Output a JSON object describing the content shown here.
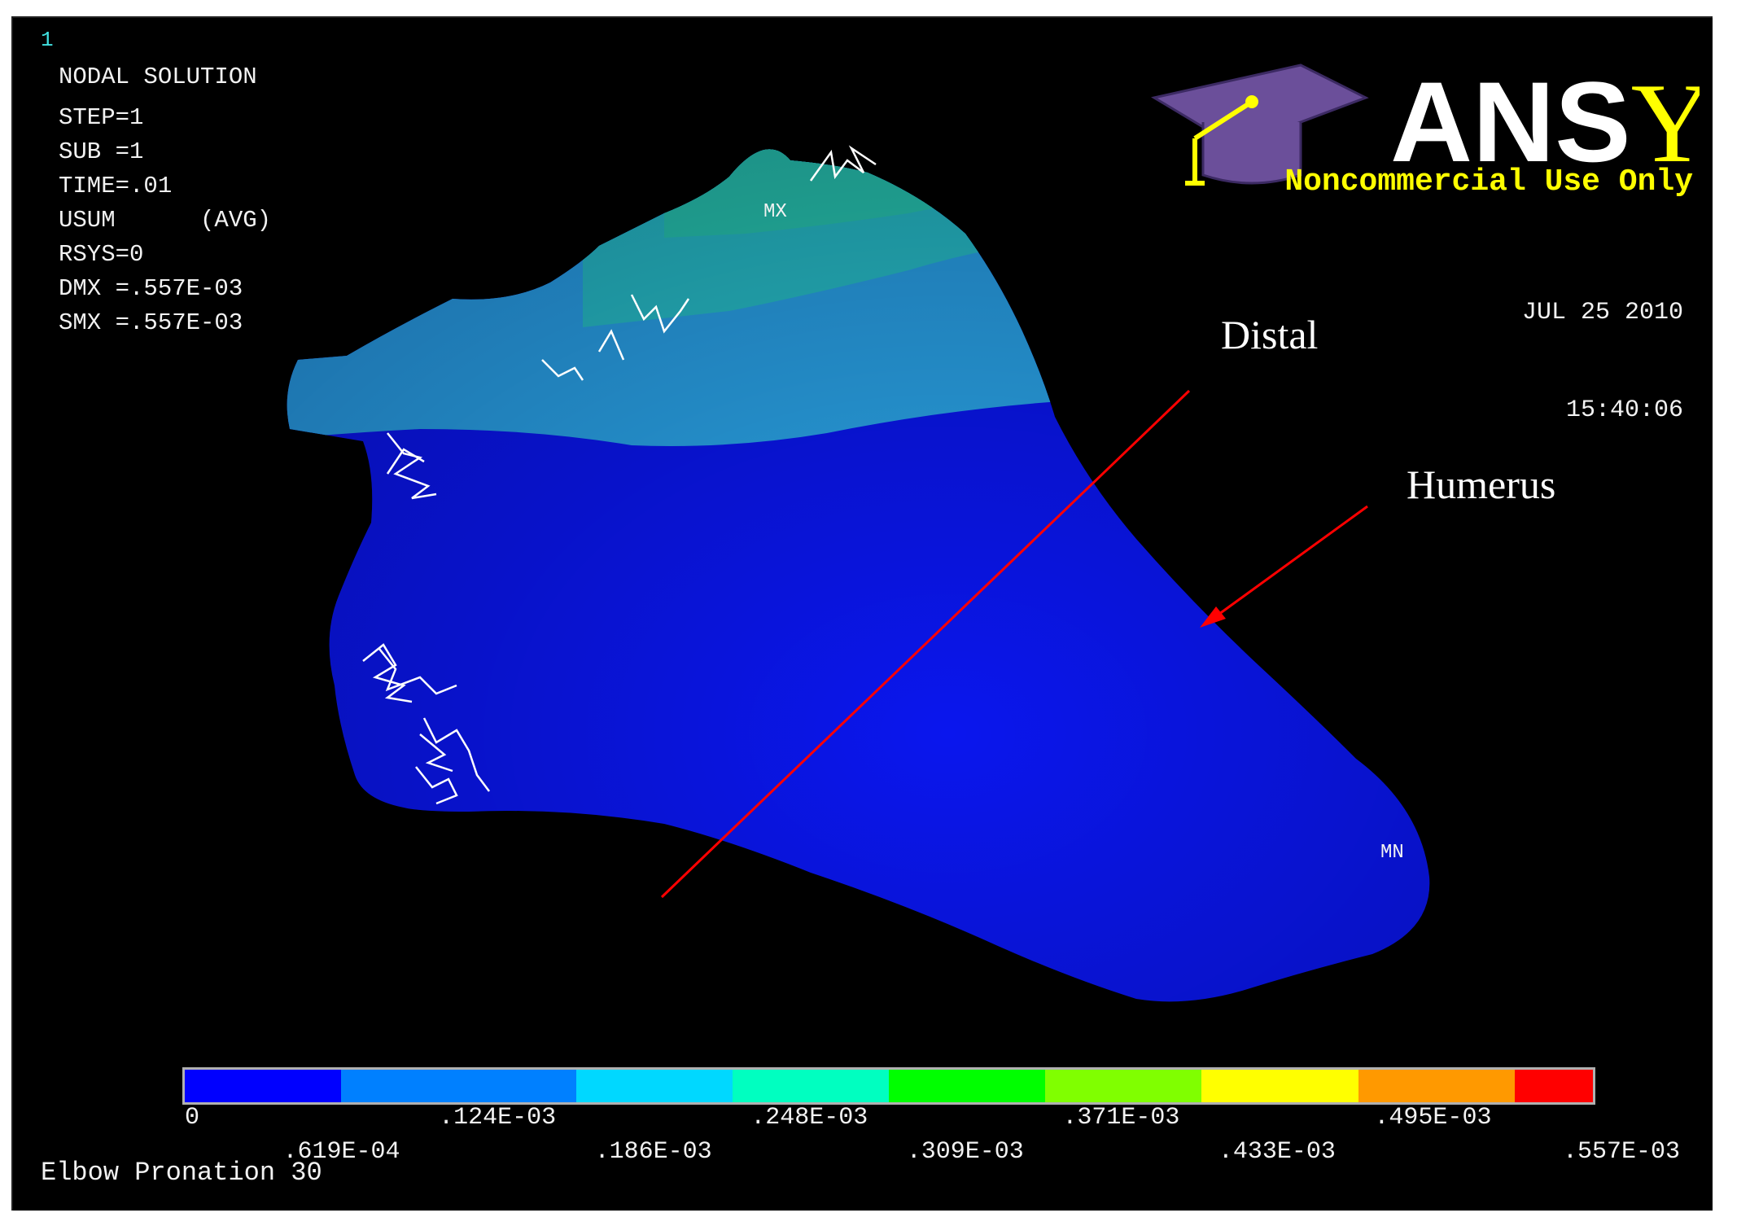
{
  "window_number": "1",
  "header": {
    "title": "NODAL SOLUTION",
    "lines": [
      "STEP=1",
      "SUB =1",
      "TIME=.01",
      "USUM      (AVG)",
      "RSYS=0",
      "DMX =.557E-03",
      "SMX =.557E-03"
    ]
  },
  "logo": {
    "brand": "ANSYS",
    "subtitle": "Noncommercial Use Only",
    "icon": "graduation-cap-icon",
    "colors": {
      "cap": "#6b4f9a",
      "tassel": "#ffff00",
      "brand_white": "#ffffff",
      "brand_yellow": "#ffff00"
    }
  },
  "datetime": {
    "date": "JUL 25 2010",
    "time": "15:40:06"
  },
  "annotations": {
    "distal": "Distal",
    "humerus": "Humerus",
    "line_color": "#ff0000"
  },
  "markers": {
    "max": "MX",
    "min": "MN"
  },
  "legend": {
    "colors": [
      "#0000ff",
      "#0080ff",
      "#00d8ff",
      "#00ffc0",
      "#00ff00",
      "#80ff00",
      "#ffff00",
      "#ff9900",
      "#ff0000"
    ],
    "top_row": [
      "0",
      ".124E-03",
      ".248E-03",
      ".371E-03",
      ".495E-03"
    ],
    "bottom_row": [
      ".619E-04",
      ".186E-03",
      ".309E-03",
      ".433E-03",
      ".557E-03"
    ]
  },
  "footer_title": "Elbow Pronation 30"
}
